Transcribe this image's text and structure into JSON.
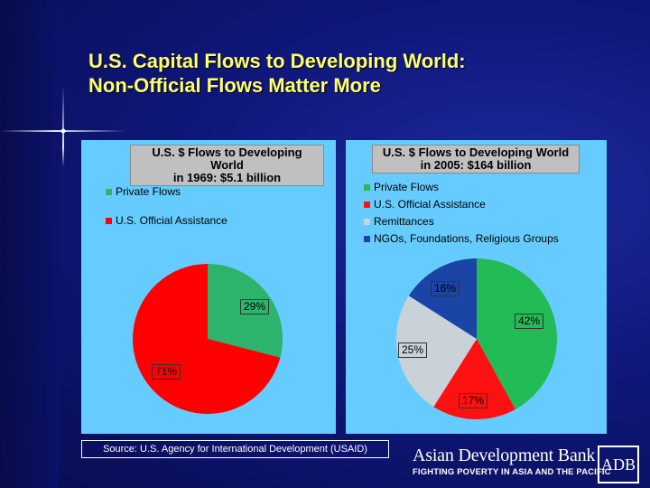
{
  "slide": {
    "title_line1": "U.S. Capital Flows to Developing World:",
    "title_line2": "Non-Official Flows Matter More",
    "source": "Source: U.S. Agency for International Development (USAID)",
    "bank_name": "Asian Development Bank",
    "bank_tagline": "FIGHTING POVERTY IN ASIA AND THE PACIFIC",
    "bank_logo_text": "ADB",
    "colors": {
      "background": "#0f177a",
      "title": "#ffff66",
      "panel": "#66ccff"
    }
  },
  "chart_data": [
    {
      "type": "pie",
      "title_line1": "U.S. $ Flows to Developing World",
      "title_line2": "in 1969: $5.1 billion",
      "legend_placement": "top-left",
      "slices": [
        {
          "label": "Private Flows",
          "value": 29,
          "display": "29%",
          "color": "#2db36b"
        },
        {
          "label": "U.S. Official Assistance",
          "value": 71,
          "display": "71%",
          "color": "#ff0000"
        }
      ]
    },
    {
      "type": "pie",
      "title_line1": "U.S. $ Flows to Developing World",
      "title_line2": "in 2005: $164 billion",
      "legend_placement": "top-left",
      "slices": [
        {
          "label": "Private Flows",
          "value": 42,
          "display": "42%",
          "color": "#22bb55"
        },
        {
          "label": "U.S. Official Assistance",
          "value": 17,
          "display": "17%",
          "color": "#ff1111"
        },
        {
          "label": "Remittances",
          "value": 25,
          "display": "25%",
          "color": "#c8d2d8"
        },
        {
          "label": "NGOs, Foundations, Religious Groups",
          "value": 16,
          "display": "16%",
          "color": "#1a44a6"
        }
      ]
    }
  ]
}
